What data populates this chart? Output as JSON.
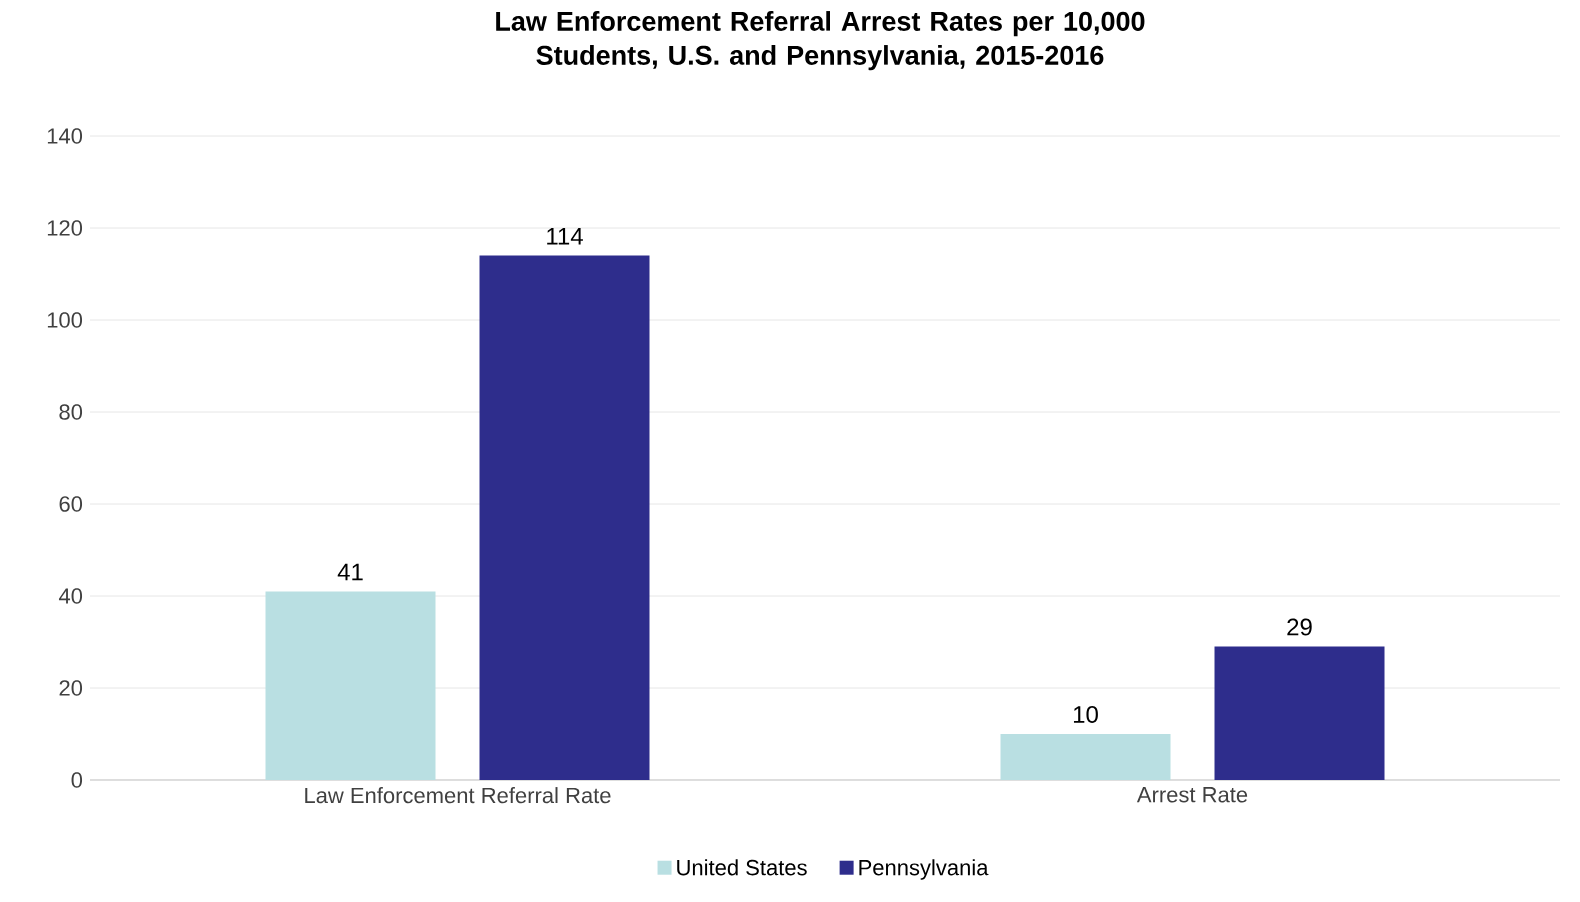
{
  "chart_data": {
    "type": "bar",
    "title": "Law Enforcement Referral Arrest Rates per 10,000 Students, U.S. and Pennsylvania, 2015-2016",
    "categories": [
      "Law Enforcement Referral Rate",
      "Arrest Rate"
    ],
    "series": [
      {
        "name": "United States",
        "color": "#b9dfe2",
        "values": [
          41,
          10
        ]
      },
      {
        "name": "Pennsylvania",
        "color": "#2e2d8c",
        "values": [
          114,
          29
        ]
      }
    ],
    "ylim": [
      0,
      140
    ],
    "yticks": [
      0,
      20,
      40,
      60,
      80,
      100,
      120,
      140
    ],
    "grid": "y",
    "legend": "bottom",
    "data_labels": true
  }
}
